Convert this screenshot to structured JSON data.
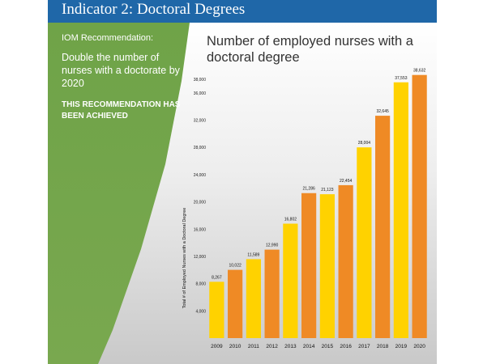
{
  "header": {
    "title": "Indicator 2: Doctoral Degrees"
  },
  "sidebar": {
    "recommendation_label": "IOM Recommendation:",
    "recommendation_text": "Double the number of nurses with a doctorate by 2020",
    "status": "THIS RECOMMENDATION HAS BEEN ACHIEVED"
  },
  "colors": {
    "header_blue": "#1f67a8",
    "sidebar_green": "#70a248",
    "bar_yellow": "#ffd200",
    "bar_orange": "#ef8a25"
  },
  "chart_data": {
    "type": "bar",
    "title": "Number of employed nurses with a doctoral degree",
    "xlabel": "",
    "ylabel": "Total # of Employed Nurses with a Doctoral Degree",
    "categories": [
      "2009",
      "2010",
      "2011",
      "2012",
      "2013",
      "2014",
      "2015",
      "2016",
      "2017",
      "2018",
      "2019",
      "2020"
    ],
    "values": [
      8267,
      10022,
      11589,
      12990,
      16802,
      21286,
      21123,
      22454,
      28004,
      32645,
      37553,
      38632
    ],
    "value_labels": [
      "8,267",
      "10,022",
      "11,589",
      "12,990",
      "16,802",
      "21,286",
      "21,123",
      "22,454",
      "28,004",
      "32,645",
      "37,553",
      "38,632"
    ],
    "bar_colors": [
      "#ffd200",
      "#ef8a25",
      "#ffd200",
      "#ef8a25",
      "#ffd200",
      "#ef8a25",
      "#ffd200",
      "#ef8a25",
      "#ffd200",
      "#ef8a25",
      "#ffd200",
      "#ef8a25"
    ],
    "yticks": [
      4000,
      8000,
      12000,
      16000,
      20000,
      24000,
      28000,
      32000,
      36000,
      38000
    ],
    "ytick_labels": [
      "4,000",
      "8,000",
      "12,000",
      "16,000",
      "20,000",
      "24,000",
      "28,000",
      "32,000",
      "36,000",
      "38,000"
    ],
    "ylim": [
      0,
      38000
    ],
    "grid": false,
    "legend": "none"
  }
}
